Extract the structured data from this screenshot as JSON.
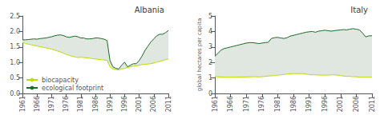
{
  "chart_data": [
    {
      "type": "line",
      "title": "Albania",
      "x": [
        1961,
        1962,
        1963,
        1964,
        1965,
        1966,
        1967,
        1968,
        1969,
        1970,
        1971,
        1972,
        1973,
        1974,
        1975,
        1976,
        1977,
        1978,
        1979,
        1980,
        1981,
        1982,
        1983,
        1984,
        1985,
        1986,
        1987,
        1988,
        1989,
        1990,
        1991,
        1992,
        1993,
        1994,
        1995,
        1996,
        1997,
        1998,
        1999,
        2000,
        2001,
        2002,
        2003,
        2004,
        2005,
        2006,
        2007,
        2008,
        2009,
        2010,
        2011
      ],
      "series": [
        {
          "name": "biocapacity",
          "color": "#bbdd00",
          "values": [
            1.65,
            1.61,
            1.59,
            1.57,
            1.55,
            1.53,
            1.51,
            1.49,
            1.47,
            1.45,
            1.43,
            1.4,
            1.37,
            1.34,
            1.3,
            1.26,
            1.23,
            1.2,
            1.18,
            1.16,
            1.17,
            1.16,
            1.15,
            1.14,
            1.12,
            1.11,
            1.1,
            1.09,
            1.08,
            1.07,
            0.86,
            0.79,
            0.77,
            0.76,
            0.79,
            0.81,
            0.83,
            0.86,
            0.88,
            0.89,
            0.91,
            0.93,
            0.94,
            0.95,
            0.96,
            0.98,
            1.01,
            1.03,
            1.06,
            1.09,
            1.11
          ]
        },
        {
          "name": "ecological footprint",
          "color": "#1a6b28",
          "values": [
            1.73,
            1.73,
            1.74,
            1.75,
            1.76,
            1.75,
            1.77,
            1.78,
            1.79,
            1.81,
            1.83,
            1.86,
            1.88,
            1.89,
            1.87,
            1.83,
            1.81,
            1.83,
            1.85,
            1.83,
            1.79,
            1.79,
            1.76,
            1.76,
            1.77,
            1.79,
            1.79,
            1.77,
            1.75,
            1.71,
            1.06,
            0.86,
            0.81,
            0.79,
            0.91,
            1.01,
            0.86,
            0.91,
            0.96,
            0.96,
            1.06,
            1.21,
            1.39,
            1.53,
            1.66,
            1.76,
            1.86,
            1.91,
            1.91,
            1.96,
            2.03
          ]
        }
      ],
      "color": "#e0e6e0",
      "xlim": [
        1961,
        2011
      ],
      "xticks": [
        1961,
        1966,
        1971,
        1976,
        1981,
        1986,
        1991,
        1996,
        2001,
        2006,
        2011
      ],
      "ylim": [
        0.0,
        2.5
      ],
      "yticks": [
        {
          "value": 0,
          "label": "0.0"
        },
        0.5,
        {
          "value": 1,
          "label": "1.0"
        },
        1.5,
        {
          "value": 2,
          "label": "2.0"
        },
        2.5
      ],
      "grid": false,
      "legend": "lower left"
    },
    {
      "type": "line",
      "title": "Italy",
      "ylabel": "global hectares per capita",
      "x": [
        1961,
        1962,
        1963,
        1964,
        1965,
        1966,
        1967,
        1968,
        1969,
        1970,
        1971,
        1972,
        1973,
        1974,
        1975,
        1976,
        1977,
        1978,
        1979,
        1980,
        1981,
        1982,
        1983,
        1984,
        1985,
        1986,
        1987,
        1988,
        1989,
        1990,
        1991,
        1992,
        1993,
        1994,
        1995,
        1996,
        1997,
        1998,
        1999,
        2000,
        2001,
        2002,
        2003,
        2004,
        2005,
        2006,
        2007,
        2008,
        2009,
        2010,
        2011
      ],
      "series": [
        {
          "name": "biocapacity",
          "color": "#bbdd00",
          "values": [
            1.08,
            1.07,
            1.06,
            1.05,
            1.05,
            1.05,
            1.05,
            1.05,
            1.06,
            1.06,
            1.07,
            1.07,
            1.08,
            1.08,
            1.07,
            1.08,
            1.1,
            1.12,
            1.14,
            1.15,
            1.18,
            1.2,
            1.22,
            1.25,
            1.27,
            1.28,
            1.28,
            1.28,
            1.28,
            1.25,
            1.22,
            1.2,
            1.2,
            1.18,
            1.18,
            1.18,
            1.18,
            1.2,
            1.2,
            1.18,
            1.15,
            1.12,
            1.1,
            1.1,
            1.08,
            1.08,
            1.05,
            1.05,
            1.05,
            1.05,
            1.05
          ]
        },
        {
          "name": "ecological footprint",
          "color": "#1a6b28",
          "values": [
            2.4,
            2.6,
            2.8,
            2.9,
            2.95,
            3.0,
            3.05,
            3.1,
            3.15,
            3.2,
            3.25,
            3.28,
            3.28,
            3.25,
            3.22,
            3.25,
            3.28,
            3.3,
            3.55,
            3.6,
            3.62,
            3.58,
            3.55,
            3.6,
            3.7,
            3.75,
            3.8,
            3.85,
            3.9,
            3.95,
            3.98,
            4.0,
            3.95,
            4.02,
            4.05,
            4.08,
            4.05,
            4.02,
            4.05,
            4.08,
            4.1,
            4.12,
            4.1,
            4.15,
            4.18,
            4.15,
            4.1,
            3.9,
            3.65,
            3.72,
            3.72
          ]
        }
      ],
      "color": "#e0e6e0",
      "xlim": [
        1961,
        2011
      ],
      "xticks": [
        1961,
        1966,
        1971,
        1976,
        1981,
        1986,
        1991,
        1996,
        2001,
        2006,
        2011
      ],
      "ylim": [
        0.0,
        5.0
      ],
      "yticks": [
        0,
        1,
        2,
        3,
        4,
        5
      ],
      "grid": false
    }
  ]
}
